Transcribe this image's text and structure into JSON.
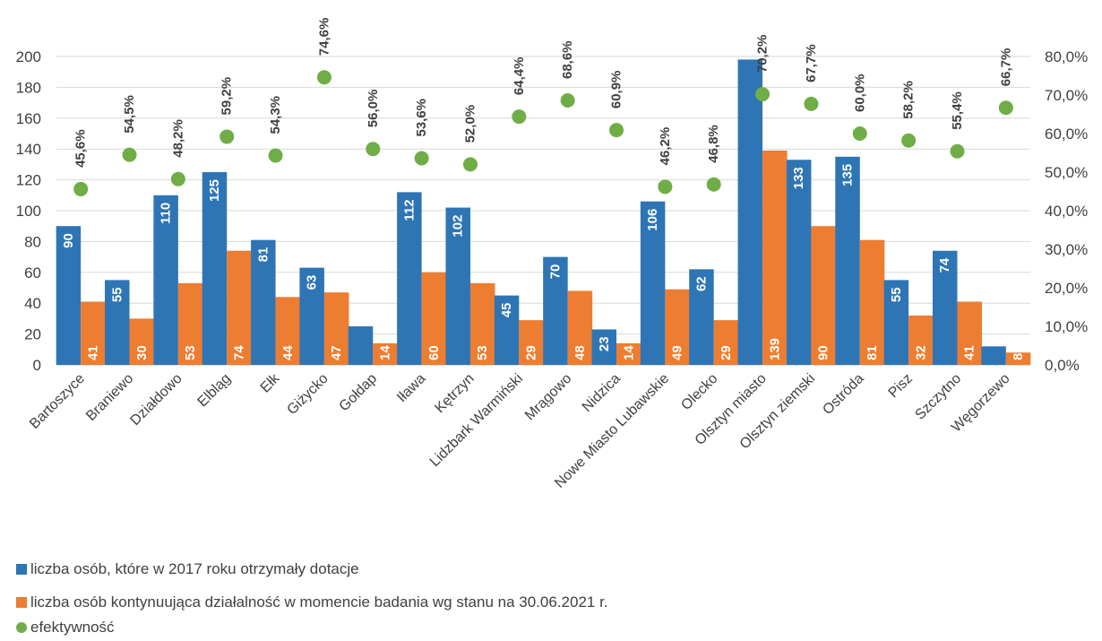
{
  "chart_data": {
    "type": "bar",
    "categories": [
      "Bartoszyce",
      "Braniewo",
      "Działdowo",
      "Elbląg",
      "Ełk",
      "Giżycko",
      "Gołdap",
      "Iława",
      "Kętrzyn",
      "Lidzbark Warmiński",
      "Mrągowo",
      "Nidzica",
      "Nowe Miasto Lubawskie",
      "Olecko",
      "Olsztyn miasto",
      "Olsztyn ziemski",
      "Ostróda",
      "Pisz",
      "Szczytno",
      "Węgorzewo"
    ],
    "series": [
      {
        "name": "liczba osób, które w 2017 roku otrzymały dotacje",
        "type": "bar",
        "axis": "left",
        "color": "#2E75B6",
        "values": [
          90,
          55,
          110,
          125,
          81,
          63,
          25,
          112,
          102,
          45,
          70,
          23,
          106,
          62,
          198,
          133,
          135,
          55,
          74,
          12
        ],
        "labels": [
          "90",
          "55",
          "110",
          "125",
          "81",
          "63",
          "",
          "112",
          "102",
          "45",
          "70",
          "23",
          "106",
          "62",
          "",
          "133",
          "135",
          "55",
          "74",
          ""
        ]
      },
      {
        "name": "liczba osób kontynuująca działalność w momencie badania wg stanu na 30.06.2021 r.",
        "type": "bar",
        "axis": "left",
        "color": "#ED7D31",
        "values": [
          41,
          30,
          53,
          74,
          44,
          47,
          14,
          60,
          53,
          29,
          48,
          14,
          49,
          29,
          139,
          90,
          81,
          32,
          41,
          8
        ],
        "labels": [
          "41",
          "30",
          "53",
          "74",
          "44",
          "47",
          "14",
          "60",
          "53",
          "29",
          "48",
          "14",
          "49",
          "29",
          "139",
          "90",
          "81",
          "32",
          "41",
          "8"
        ]
      },
      {
        "name": "efektywność",
        "type": "scatter",
        "axis": "right",
        "color": "#70AD47",
        "values": [
          45.6,
          54.5,
          48.2,
          59.2,
          54.3,
          74.6,
          56.0,
          53.6,
          52.0,
          64.4,
          68.6,
          60.9,
          46.2,
          46.8,
          70.2,
          67.7,
          60.0,
          58.2,
          55.4,
          66.7
        ],
        "labels": [
          "45,6%",
          "54,5%",
          "48,2%",
          "59,2%",
          "54,3%",
          "74,6%",
          "56,0%",
          "53,6%",
          "52,0%",
          "64,4%",
          "68,6%",
          "60,9%",
          "46,2%",
          "46,8%",
          "70,2%",
          "67,7%",
          "60,0%",
          "58,2%",
          "55,4%",
          "66,7%"
        ]
      }
    ],
    "y_left": {
      "ylim": [
        0,
        200
      ],
      "ticks": [
        "0",
        "20",
        "40",
        "60",
        "80",
        "100",
        "120",
        "140",
        "160",
        "180",
        "200"
      ]
    },
    "y_right": {
      "ylim": [
        0,
        80
      ],
      "ticks": [
        "0,0%",
        "10,0%",
        "20,0%",
        "30,0%",
        "40,0%",
        "50,0%",
        "60,0%",
        "70,0%",
        "80,0%"
      ]
    },
    "grid": true,
    "legend": "bottom-left"
  },
  "legend": {
    "item1": "liczba osób, które w 2017 roku otrzymały dotacje",
    "item2": "liczba osób kontynuująca działalność w momencie badania wg stanu na 30.06.2021 r.",
    "item3": "efektywność"
  }
}
